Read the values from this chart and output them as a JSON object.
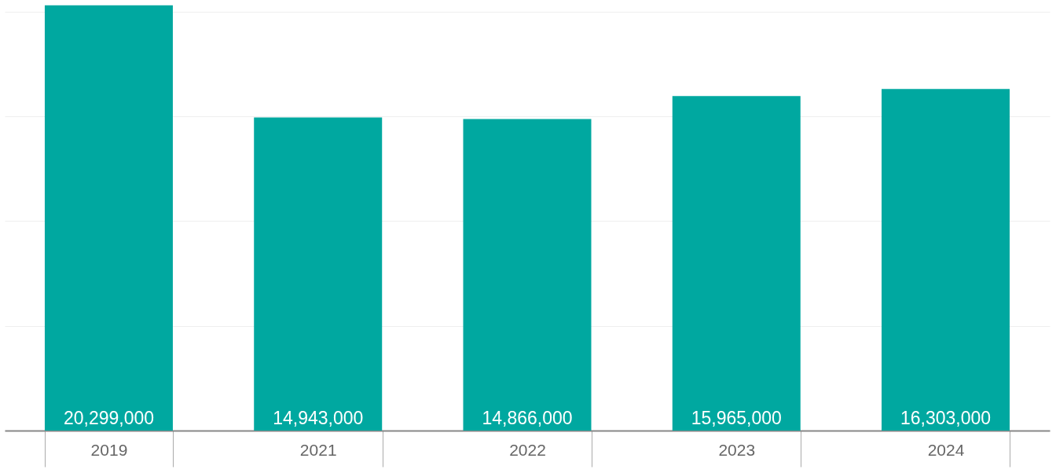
{
  "chart_data": {
    "type": "bar",
    "categories": [
      "2019",
      "2021",
      "2022",
      "2023",
      "2024"
    ],
    "values": [
      20299000,
      14943000,
      14866000,
      15965000,
      16303000
    ],
    "color": "#00a8a0",
    "value_labels": [
      "20,299,000",
      "14,943,000",
      "14,866,000",
      "15,965,000",
      "16,303,000"
    ],
    "ylim": [
      0,
      20550000
    ],
    "yticks": [
      {
        "value": 0,
        "label": null
      },
      {
        "value": 5000000,
        "label": null
      },
      {
        "value": 10000000,
        "label": null
      },
      {
        "value": 15000000,
        "label": null
      },
      {
        "value": 20000000,
        "label": null
      }
    ],
    "grid": "y",
    "tick_labels": "x"
  }
}
